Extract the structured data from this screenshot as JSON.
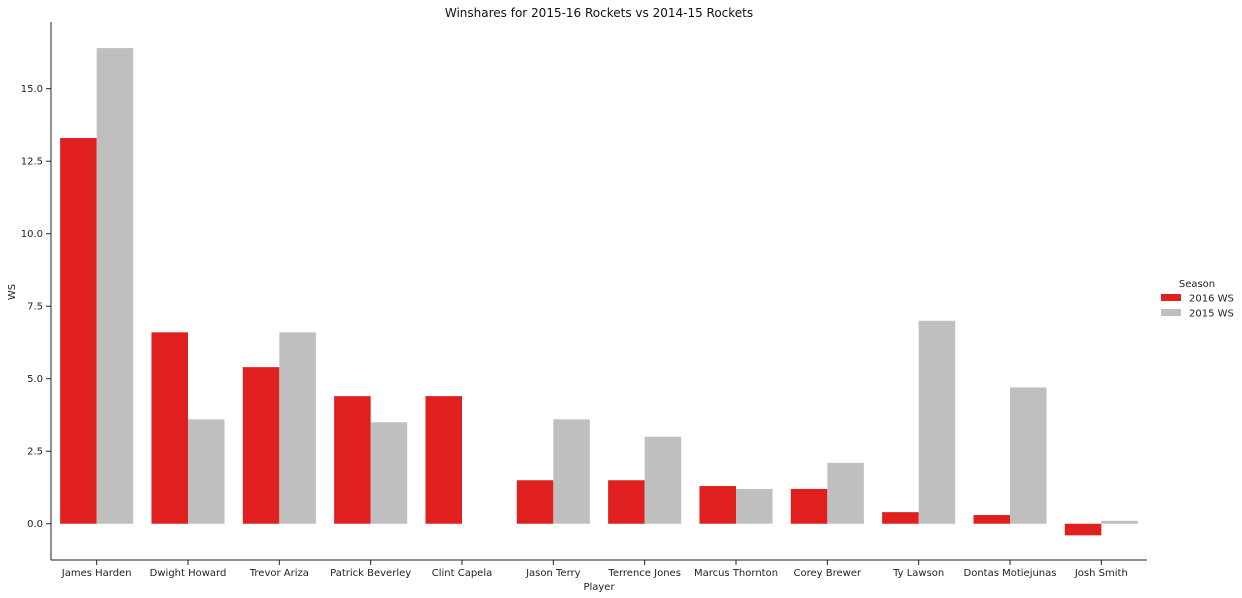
{
  "chart_data": {
    "type": "bar",
    "title": "Winshares for 2015-16 Rockets vs 2014-15 Rockets",
    "xlabel": "Player",
    "ylabel": "WS",
    "categories": [
      "James Harden",
      "Dwight Howard",
      "Trevor Ariza",
      "Patrick Beverley",
      "Clint Capela",
      "Jason Terry",
      "Terrence Jones",
      "Marcus Thornton",
      "Corey Brewer",
      "Ty Lawson",
      "Dontas Motiejunas",
      "Josh Smith"
    ],
    "series": [
      {
        "name": "2016 WS",
        "color": "#e01f1f",
        "values": [
          13.3,
          6.6,
          5.4,
          4.4,
          4.4,
          1.5,
          1.5,
          1.3,
          1.2,
          0.4,
          0.3,
          -0.4
        ]
      },
      {
        "name": "2015 WS",
        "color": "#bfbfbf",
        "values": [
          16.4,
          3.6,
          6.6,
          3.5,
          0.0,
          3.6,
          3.0,
          1.2,
          2.1,
          7.0,
          4.7,
          0.1
        ]
      }
    ],
    "ylim": [
      -1.25,
      17.3
    ],
    "yticks": [
      0.0,
      2.5,
      5.0,
      7.5,
      10.0,
      12.5,
      15.0
    ],
    "ytick_labels": [
      "0.0",
      "2.5",
      "5.0",
      "7.5",
      "10.0",
      "12.5",
      "15.0"
    ],
    "legend": {
      "title": "Season",
      "placement": "right"
    },
    "grid": false
  }
}
